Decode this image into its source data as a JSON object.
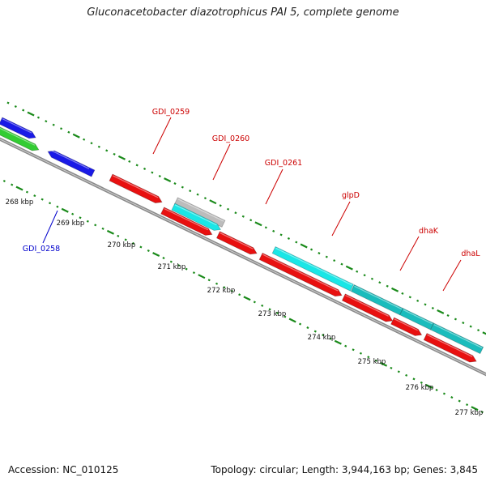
{
  "title": "Gluconacetobacter diazotrophicus PAI 5, complete genome",
  "footer": {
    "accession": "Accession: NC_010125",
    "topology": "Topology: circular; Length: 3,944,163 bp; Genes: 3,845"
  },
  "colors": {
    "backbone": "#8a8a8a",
    "tick": "#1a8a1a",
    "gene_red": "#e81010",
    "gene_blue": "#1a1ae6",
    "gene_green": "#33cc33",
    "gene_cyan": "#1ae6e6",
    "gene_teal": "#1abcbc",
    "gene_gray": "#bcbcbc",
    "label_red": "#cc0000",
    "label_blue": "#0000cc"
  },
  "kbp_labels": [
    "268 kbp",
    "269 kbp",
    "270 kbp",
    "271 kbp",
    "272 kbp",
    "273 kbp",
    "274 kbp",
    "275 kbp",
    "276 kbp",
    "277 kbp"
  ],
  "gene_labels": [
    {
      "text": "GDI_0259",
      "color": "red"
    },
    {
      "text": "GDI_0260",
      "color": "red"
    },
    {
      "text": "GDI_0261",
      "color": "red"
    },
    {
      "text": "glpD",
      "color": "red"
    },
    {
      "text": "dhaK",
      "color": "red"
    },
    {
      "text": "dhaL",
      "color": "red"
    },
    {
      "text": "GDI_0258",
      "color": "blue"
    }
  ]
}
